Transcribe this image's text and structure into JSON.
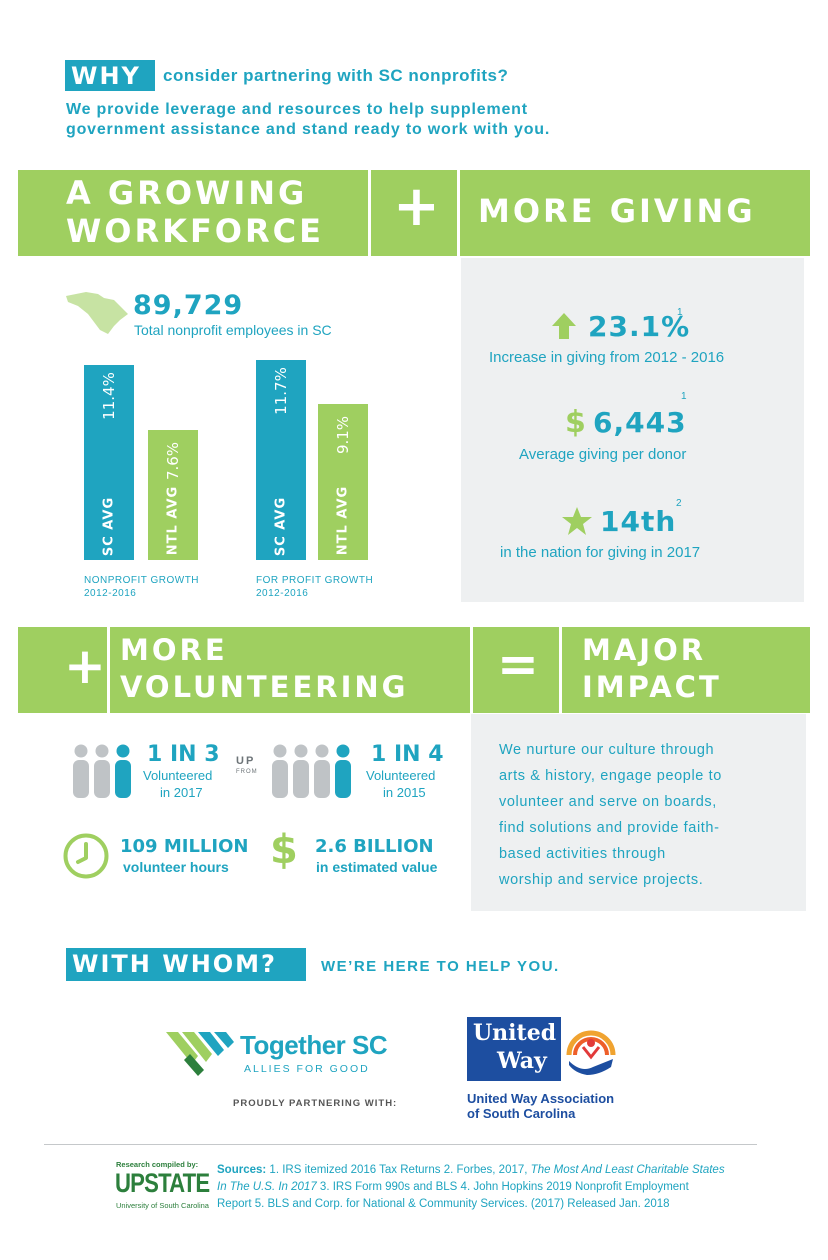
{
  "intro": {
    "why_badge": "WHY",
    "why_rest": "consider partnering with SC nonprofits?",
    "subtitle_line1": "We provide leverage and resources to help supplement",
    "subtitle_line2": "government assistance and stand ready to work with you."
  },
  "banner1": {
    "left_line1": "A GROWING",
    "left_line2": "WORKFORCE",
    "plus": "+",
    "right": "MORE GIVING"
  },
  "workforce": {
    "total": "89,729",
    "total_caption": "Total nonprofit employees in SC"
  },
  "chart_data": [
    {
      "type": "bar",
      "categories": [
        "SC AVG",
        "NTL AVG"
      ],
      "values": [
        11.4,
        7.6
      ],
      "value_labels": [
        "11.4%",
        "7.6%"
      ],
      "title": "NONPROFIT GROWTH",
      "subtitle": "2012-2016",
      "colors": [
        "#1fa4c0",
        "#9fcf60"
      ]
    },
    {
      "type": "bar",
      "categories": [
        "SC AVG",
        "NTL AVG"
      ],
      "values": [
        11.7,
        9.1
      ],
      "value_labels": [
        "11.7%",
        "9.1%"
      ],
      "title": "FOR PROFIT GROWTH",
      "subtitle": "2012-2016",
      "colors": [
        "#1fa4c0",
        "#9fcf60"
      ]
    }
  ],
  "giving": {
    "stat1_value": "23.1%",
    "stat1_sup": "1",
    "stat1_caption": "Increase in giving from 2012 - 2016",
    "stat2_symbol": "$",
    "stat2_value": "6,443",
    "stat2_sup": "1",
    "stat2_caption": "Average giving per donor",
    "stat3_value": "14th",
    "stat3_sup": "2",
    "stat3_caption": "in the nation for giving in 2017"
  },
  "banner2": {
    "plus": "+",
    "left_line1": "MORE",
    "left_line2": "VOLUNTEERING",
    "equals": "=",
    "right_line1": "MAJOR",
    "right_line2": "IMPACT"
  },
  "volunteering": {
    "ratio1": "1 IN 3",
    "ratio1_caption_line1": "Volunteered",
    "ratio1_caption_line2": "in 2017",
    "up": "UP",
    "from": "FROM",
    "ratio2": "1 IN 4",
    "ratio2_caption_line1": "Volunteered",
    "ratio2_caption_line2": "in 2015",
    "hours_value": "109 MILLION",
    "hours_caption": "volunteer hours",
    "value_symbol": "$",
    "value_amount": "2.6 BILLION",
    "value_caption": "in estimated value"
  },
  "impact": {
    "lines": [
      "We nurture our culture through",
      "arts & history, engage people to",
      "volunteer and serve on boards,",
      "find solutions and provide faith-",
      "based activities through",
      "worship and service projects."
    ]
  },
  "with_whom": {
    "badge": "WITH WHOM?",
    "tagline": "WE’RE HERE TO HELP YOU."
  },
  "partners": {
    "together_name": "Together SC",
    "together_tagline": "ALLIES FOR GOOD",
    "proudly": "PROUDLY PARTNERING WITH:",
    "uw_logo_line1": "United",
    "uw_logo_line2": "Way",
    "uw_name_line1": "United Way Association",
    "uw_name_line2": "of South Carolina"
  },
  "footer": {
    "compiled_by": "Research compiled by:",
    "upstate": "UPSTATE",
    "usc": "University of South Carolina",
    "sources_label": "Sources:",
    "sources_line1_a": "1. IRS itemized 2016 Tax Returns  2. Forbes, 2017,",
    "sources_line1_b": "The Most And Least Charitable States",
    "sources_line2_a": "In The U.S. In 2017",
    "sources_line2_b": " 3. IRS Form 990s and BLS  4. John Hopkins 2019 Nonprofit Employment",
    "sources_line3": "Report  5. BLS and Corp. for National & Community Services. (2017) Released Jan. 2018"
  },
  "colors": {
    "teal": "#1fa4c0",
    "green": "#9fcf60",
    "panel_grey": "#eef0f1"
  }
}
